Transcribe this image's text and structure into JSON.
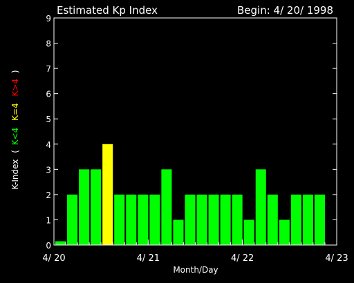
{
  "chart_data": {
    "type": "bar",
    "title": "Estimated Kp Index",
    "begin_label": "Begin: 4/ 20/ 1998",
    "xlabel": "Month/Day",
    "ylabel": {
      "prefix": "K-Index",
      "open": "(",
      "parts": [
        {
          "text": "K<4",
          "color": "#00ff00"
        },
        {
          "text": "K=4",
          "color": "#ffff00"
        },
        {
          "text": "K>4",
          "color": "#ff0000"
        }
      ],
      "close": ")"
    },
    "ylim": [
      0,
      9
    ],
    "yticks": [
      "0",
      "1",
      "2",
      "3",
      "4",
      "5",
      "6",
      "7",
      "8",
      "9"
    ],
    "x_range_days": [
      0,
      3
    ],
    "xticks": [
      {
        "day": 0,
        "label": "4/ 20"
      },
      {
        "day": 1,
        "label": "4/ 21"
      },
      {
        "day": 2,
        "label": "4/ 22"
      },
      {
        "day": 3,
        "label": "4/ 23"
      }
    ],
    "interval_hours": 3,
    "values": [
      0.15,
      2,
      3,
      3,
      4,
      2,
      2,
      2,
      2,
      3,
      1,
      2,
      2,
      2,
      2,
      2,
      1,
      3,
      2,
      1,
      2,
      2,
      2
    ],
    "colors": {
      "below4": "#00ff00",
      "equal4": "#ffff00",
      "above4": "#ff0000",
      "axis": "#ffffff",
      "background": "#000000"
    }
  }
}
